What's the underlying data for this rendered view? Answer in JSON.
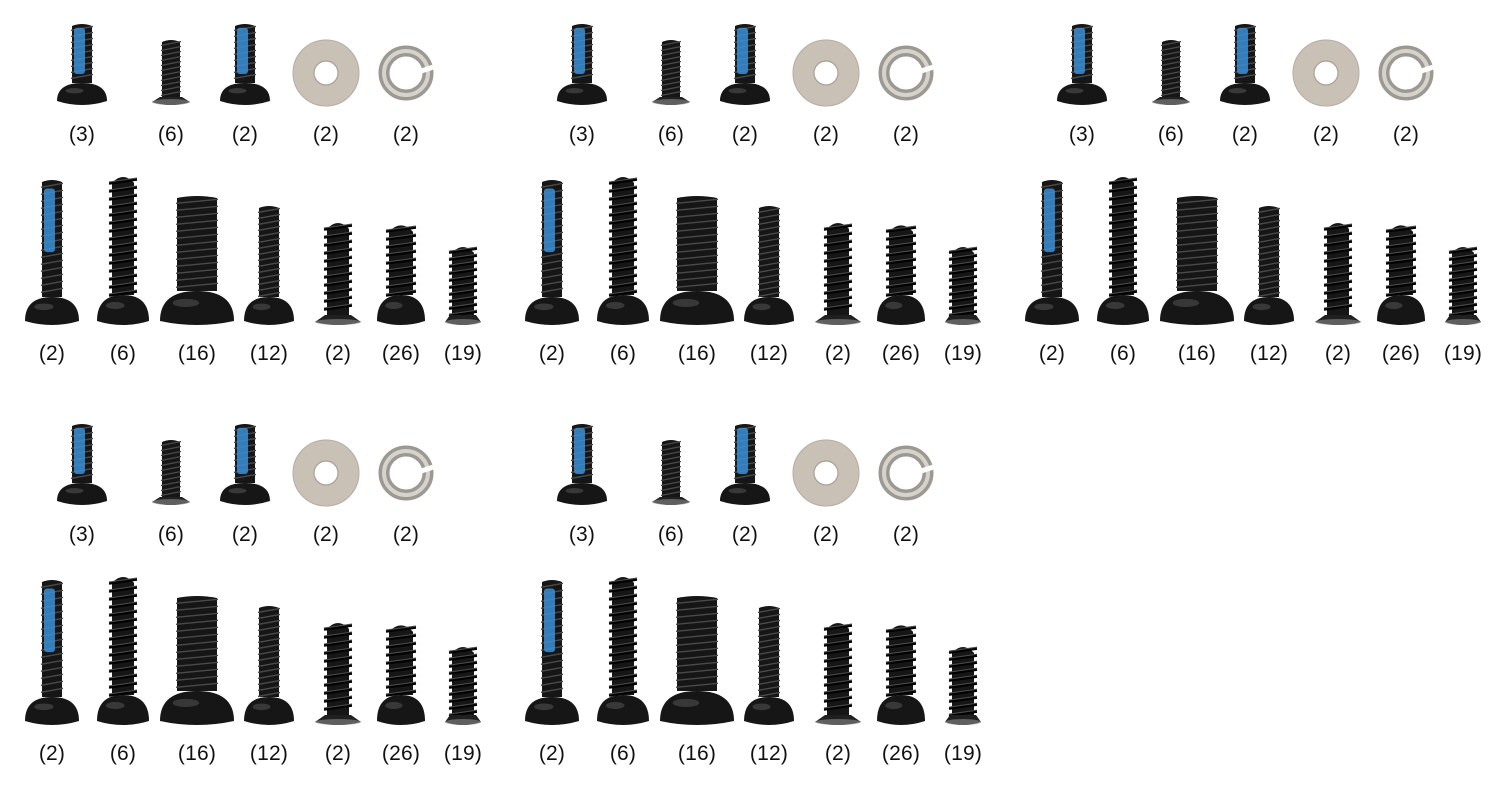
{
  "colors": {
    "background": "#ffffff",
    "screw_black": "#161616",
    "threadlock_blue": "#3b8fd6",
    "washer_silver": "#c9c0b6"
  },
  "kits": [
    {
      "small_parts": [
        {
          "icon": "threadlocked-button-head-screw-icon",
          "qty": "(3)"
        },
        {
          "icon": "flat-head-screw-icon",
          "qty": "(6)"
        },
        {
          "icon": "threadlocked-button-head-screw-icon",
          "qty": "(2)"
        },
        {
          "icon": "flat-washer-icon",
          "qty": "(2)"
        },
        {
          "icon": "spring-lock-washer-icon",
          "qty": "(2)"
        }
      ],
      "long_screws": [
        {
          "icon": "threadlocked-button-head-bolt-icon",
          "qty": "(2)"
        },
        {
          "icon": "long-self-tapping-screw-icon",
          "qty": "(6)"
        },
        {
          "icon": "thick-button-head-bolt-icon",
          "qty": "(16)"
        },
        {
          "icon": "button-head-machine-screw-icon",
          "qty": "(12)"
        },
        {
          "icon": "flat-head-tapping-screw-icon",
          "qty": "(2)"
        },
        {
          "icon": "button-head-tapping-screw-icon",
          "qty": "(26)"
        },
        {
          "icon": "short-self-tapping-screw-icon",
          "qty": "(19)"
        }
      ]
    },
    {
      "small_parts": [
        {
          "icon": "threadlocked-button-head-screw-icon",
          "qty": "(3)"
        },
        {
          "icon": "flat-head-screw-icon",
          "qty": "(6)"
        },
        {
          "icon": "threadlocked-button-head-screw-icon",
          "qty": "(2)"
        },
        {
          "icon": "flat-washer-icon",
          "qty": "(2)"
        },
        {
          "icon": "spring-lock-washer-icon",
          "qty": "(2)"
        }
      ],
      "long_screws": [
        {
          "icon": "threadlocked-button-head-bolt-icon",
          "qty": "(2)"
        },
        {
          "icon": "long-self-tapping-screw-icon",
          "qty": "(6)"
        },
        {
          "icon": "thick-button-head-bolt-icon",
          "qty": "(16)"
        },
        {
          "icon": "button-head-machine-screw-icon",
          "qty": "(12)"
        },
        {
          "icon": "flat-head-tapping-screw-icon",
          "qty": "(2)"
        },
        {
          "icon": "button-head-tapping-screw-icon",
          "qty": "(26)"
        },
        {
          "icon": "short-self-tapping-screw-icon",
          "qty": "(19)"
        }
      ]
    },
    {
      "small_parts": [
        {
          "icon": "threadlocked-button-head-screw-icon",
          "qty": "(3)"
        },
        {
          "icon": "flat-head-screw-icon",
          "qty": "(6)"
        },
        {
          "icon": "threadlocked-button-head-screw-icon",
          "qty": "(2)"
        },
        {
          "icon": "flat-washer-icon",
          "qty": "(2)"
        },
        {
          "icon": "spring-lock-washer-icon",
          "qty": "(2)"
        }
      ],
      "long_screws": [
        {
          "icon": "threadlocked-button-head-bolt-icon",
          "qty": "(2)"
        },
        {
          "icon": "long-self-tapping-screw-icon",
          "qty": "(6)"
        },
        {
          "icon": "thick-button-head-bolt-icon",
          "qty": "(16)"
        },
        {
          "icon": "button-head-machine-screw-icon",
          "qty": "(12)"
        },
        {
          "icon": "flat-head-tapping-screw-icon",
          "qty": "(2)"
        },
        {
          "icon": "button-head-tapping-screw-icon",
          "qty": "(26)"
        },
        {
          "icon": "short-self-tapping-screw-icon",
          "qty": "(19)"
        }
      ]
    },
    {
      "small_parts": [
        {
          "icon": "threadlocked-button-head-screw-icon",
          "qty": "(3)"
        },
        {
          "icon": "flat-head-screw-icon",
          "qty": "(6)"
        },
        {
          "icon": "threadlocked-button-head-screw-icon",
          "qty": "(2)"
        },
        {
          "icon": "flat-washer-icon",
          "qty": "(2)"
        },
        {
          "icon": "spring-lock-washer-icon",
          "qty": "(2)"
        }
      ],
      "long_screws": [
        {
          "icon": "threadlocked-button-head-bolt-icon",
          "qty": "(2)"
        },
        {
          "icon": "long-self-tapping-screw-icon",
          "qty": "(6)"
        },
        {
          "icon": "thick-button-head-bolt-icon",
          "qty": "(16)"
        },
        {
          "icon": "button-head-machine-screw-icon",
          "qty": "(12)"
        },
        {
          "icon": "flat-head-tapping-screw-icon",
          "qty": "(2)"
        },
        {
          "icon": "button-head-tapping-screw-icon",
          "qty": "(26)"
        },
        {
          "icon": "short-self-tapping-screw-icon",
          "qty": "(19)"
        }
      ]
    },
    {
      "small_parts": [
        {
          "icon": "threadlocked-button-head-screw-icon",
          "qty": "(3)"
        },
        {
          "icon": "flat-head-screw-icon",
          "qty": "(6)"
        },
        {
          "icon": "threadlocked-button-head-screw-icon",
          "qty": "(2)"
        },
        {
          "icon": "flat-washer-icon",
          "qty": "(2)"
        },
        {
          "icon": "spring-lock-washer-icon",
          "qty": "(2)"
        }
      ],
      "long_screws": [
        {
          "icon": "threadlocked-button-head-bolt-icon",
          "qty": "(2)"
        },
        {
          "icon": "long-self-tapping-screw-icon",
          "qty": "(6)"
        },
        {
          "icon": "thick-button-head-bolt-icon",
          "qty": "(16)"
        },
        {
          "icon": "button-head-machine-screw-icon",
          "qty": "(12)"
        },
        {
          "icon": "flat-head-tapping-screw-icon",
          "qty": "(2)"
        },
        {
          "icon": "button-head-tapping-screw-icon",
          "qty": "(26)"
        },
        {
          "icon": "short-self-tapping-screw-icon",
          "qty": "(19)"
        }
      ]
    }
  ]
}
